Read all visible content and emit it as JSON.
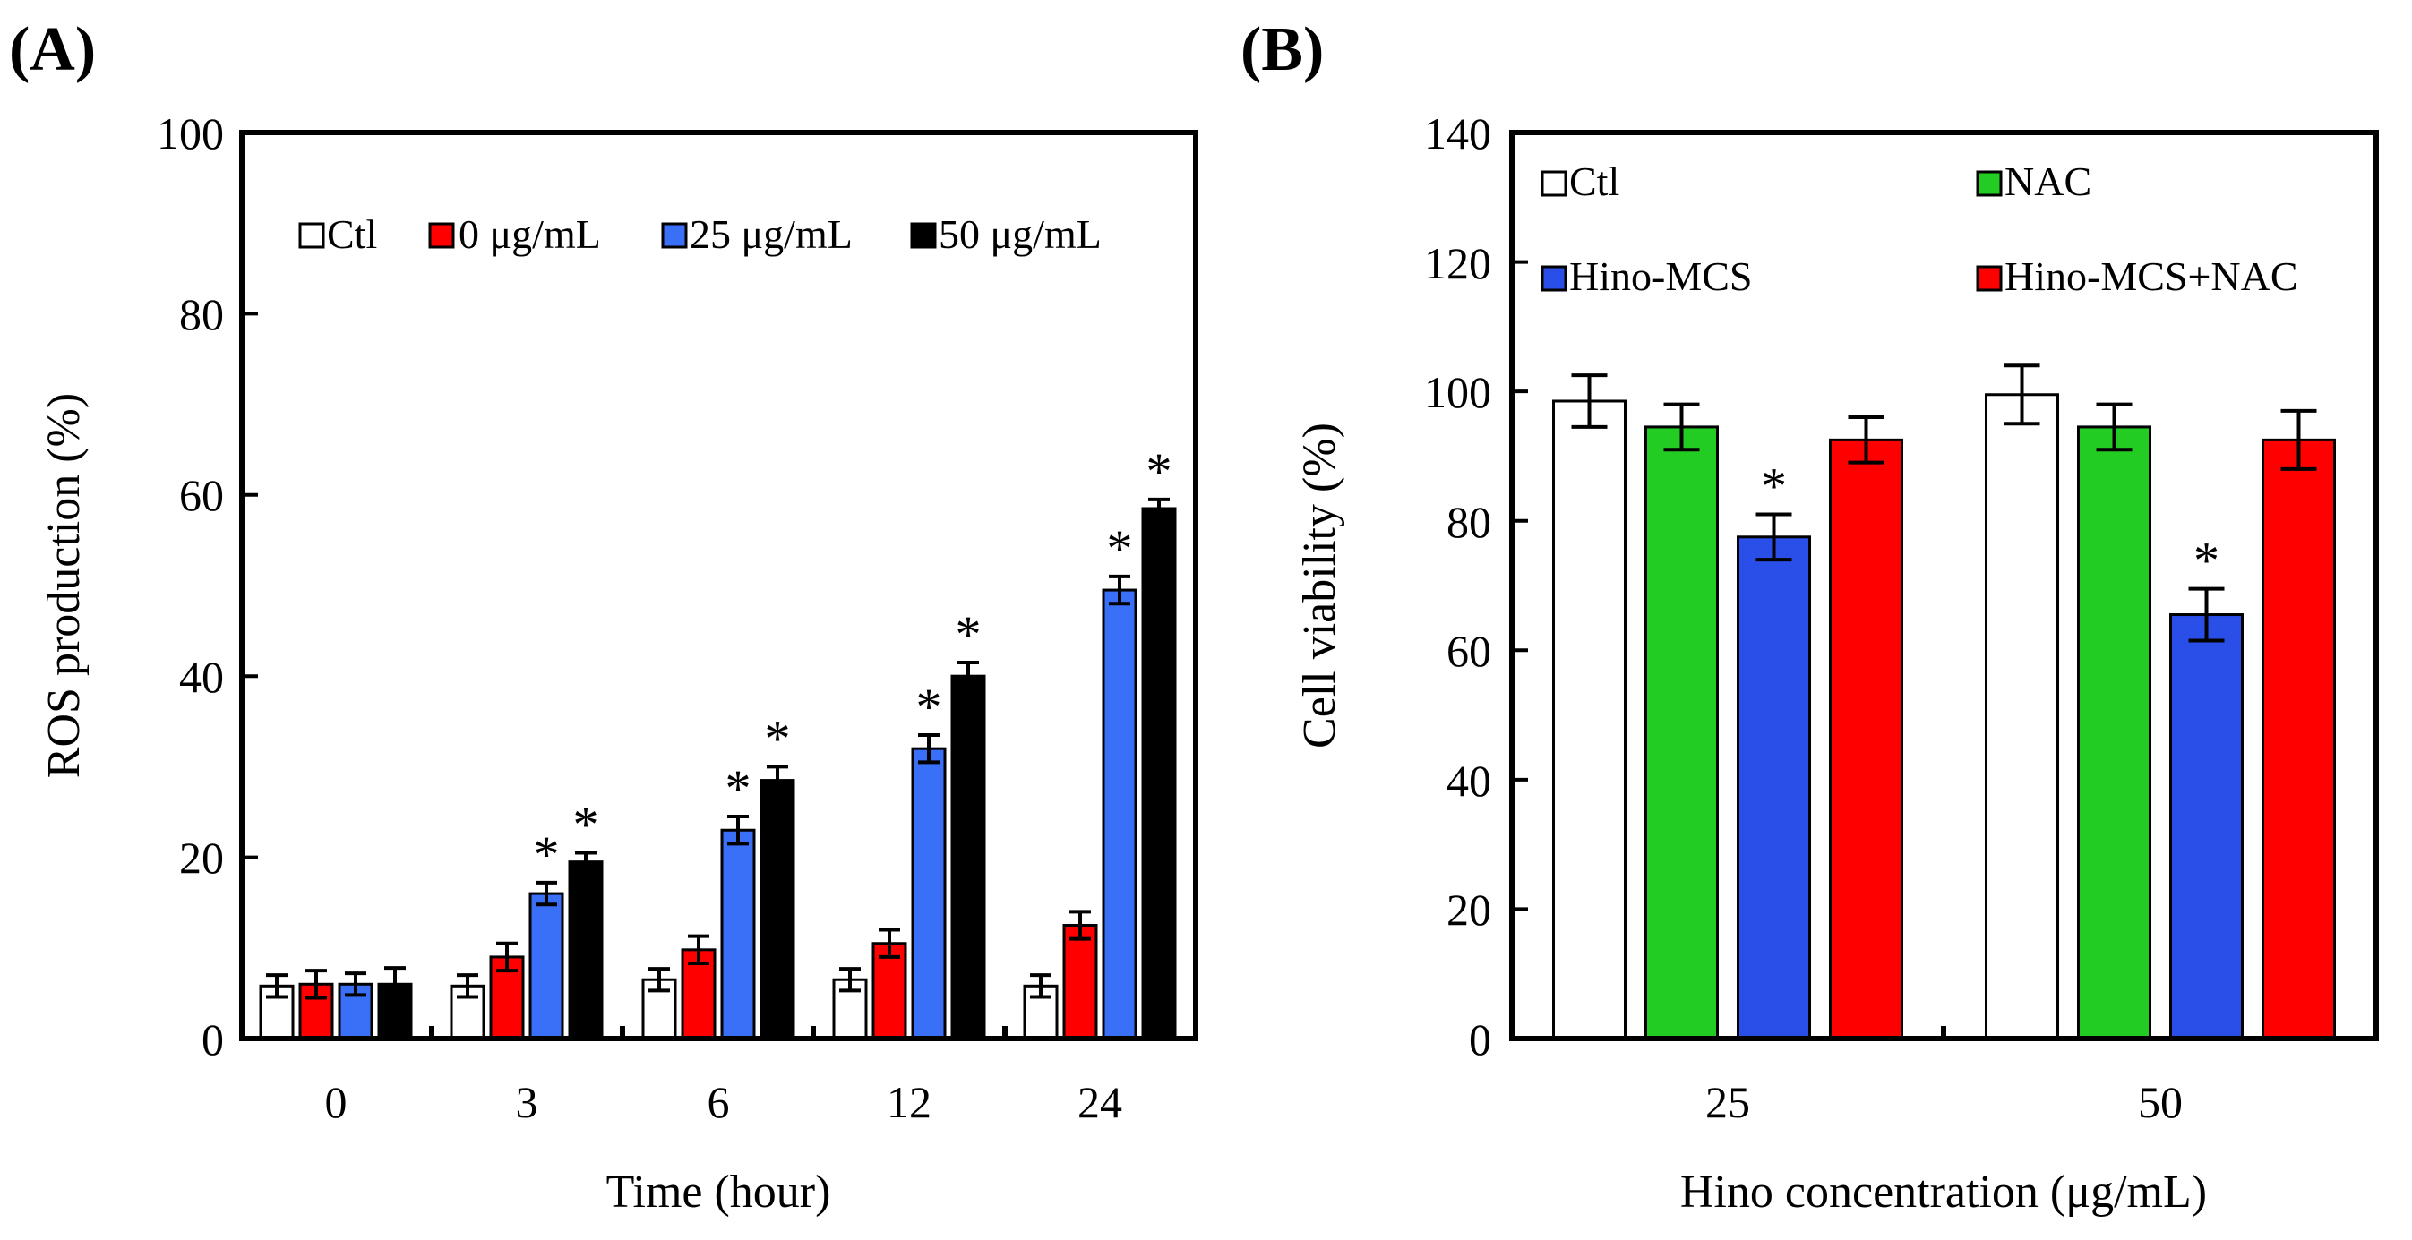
{
  "chart_data": [
    {
      "panel_label": "(A)",
      "type": "bar",
      "xlabel": "Time (hour)",
      "ylabel": "ROS production (%)",
      "ylim": [
        0,
        100
      ],
      "yticks": [
        "0",
        "20",
        "40",
        "60",
        "80",
        "100"
      ],
      "categories": [
        "0",
        "3",
        "6",
        "12",
        "24"
      ],
      "legend_position": "top",
      "series": [
        {
          "name": "Ctl",
          "color": "#ffffff",
          "values": [
            5.8,
            5.8,
            6.5,
            6.5,
            5.8
          ],
          "errors": [
            1.2,
            1.2,
            1.2,
            1.2,
            1.2
          ],
          "significant": [
            false,
            false,
            false,
            false,
            false
          ]
        },
        {
          "name": "0 μg/mL",
          "color": "#ff0000",
          "values": [
            6.0,
            9.0,
            9.8,
            10.5,
            12.5
          ],
          "errors": [
            1.5,
            1.5,
            1.5,
            1.5,
            1.5
          ],
          "significant": [
            false,
            false,
            false,
            false,
            false
          ]
        },
        {
          "name": "25 μg/mL",
          "color": "#3a6ff7",
          "values": [
            6.0,
            16.0,
            23.0,
            32.0,
            49.5
          ],
          "errors": [
            1.2,
            1.2,
            1.5,
            1.5,
            1.5
          ],
          "significant": [
            false,
            true,
            true,
            true,
            true
          ]
        },
        {
          "name": "50 μg/mL",
          "color": "#000000",
          "values": [
            6.0,
            19.5,
            28.5,
            40.0,
            58.5
          ],
          "errors": [
            1.8,
            1.0,
            1.5,
            1.5,
            1.0
          ],
          "significant": [
            false,
            true,
            true,
            true,
            true
          ]
        }
      ],
      "significance_marker": "*"
    },
    {
      "panel_label": "(B)",
      "type": "bar",
      "xlabel": "Hino concentration (μg/mL)",
      "ylabel": "Cell viability (%)",
      "ylim": [
        0,
        140
      ],
      "yticks": [
        "0",
        "20",
        "40",
        "60",
        "80",
        "100",
        "120",
        "140"
      ],
      "categories": [
        "25",
        "50"
      ],
      "legend_position": "top",
      "series": [
        {
          "name": "Ctl",
          "color": "#ffffff",
          "values": [
            98.5,
            99.5
          ],
          "errors": [
            4.0,
            4.5
          ],
          "significant": [
            false,
            false
          ]
        },
        {
          "name": "NAC",
          "color": "#22cc22",
          "values": [
            94.5,
            94.5
          ],
          "errors": [
            3.5,
            3.5
          ],
          "significant": [
            false,
            false
          ]
        },
        {
          "name": "Hino-MCS",
          "color": "#2a4fe8",
          "values": [
            77.5,
            65.5
          ],
          "errors": [
            3.5,
            4.0
          ],
          "significant": [
            true,
            true
          ]
        },
        {
          "name": "Hino-MCS+NAC",
          "color": "#ff0000",
          "values": [
            92.5,
            92.5
          ],
          "errors": [
            3.5,
            4.5
          ],
          "significant": [
            false,
            false
          ]
        }
      ],
      "significance_marker": "*"
    }
  ]
}
